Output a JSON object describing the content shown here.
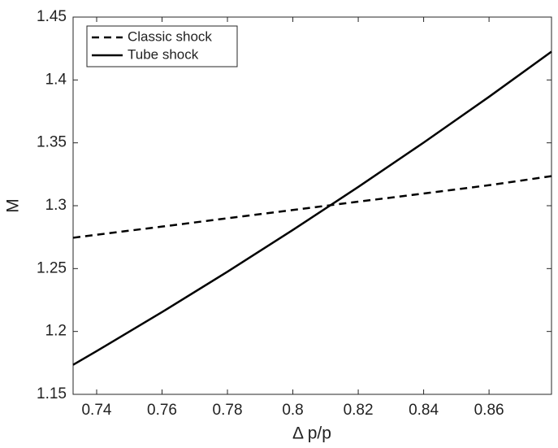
{
  "chart_data": {
    "type": "line",
    "xlabel": "Δ p/p",
    "ylabel": "M",
    "x": [
      0.7328,
      0.74,
      0.76,
      0.78,
      0.8,
      0.82,
      0.84,
      0.86,
      0.8791
    ],
    "series": [
      {
        "name": "Classic shock",
        "color": "#000000",
        "dash": "dashed",
        "values": [
          1.2745,
          1.2769,
          1.2834,
          1.29,
          1.2966,
          1.3032,
          1.3097,
          1.3163,
          1.3235
        ]
      },
      {
        "name": "Tube shock",
        "color": "#000000",
        "dash": "solid",
        "values": [
          1.1735,
          1.1844,
          1.2154,
          1.2475,
          1.2807,
          1.3149,
          1.3502,
          1.3866,
          1.4225
        ]
      }
    ],
    "xlim": [
      0.7328,
      0.8791
    ],
    "ylim": [
      1.15,
      1.45
    ],
    "xticks": [
      0.74,
      0.76,
      0.78,
      0.8,
      0.82,
      0.84,
      0.86
    ],
    "yticks": [
      1.15,
      1.2,
      1.25,
      1.3,
      1.35,
      1.4,
      1.45
    ],
    "grid": false,
    "legend": "upper-left"
  }
}
